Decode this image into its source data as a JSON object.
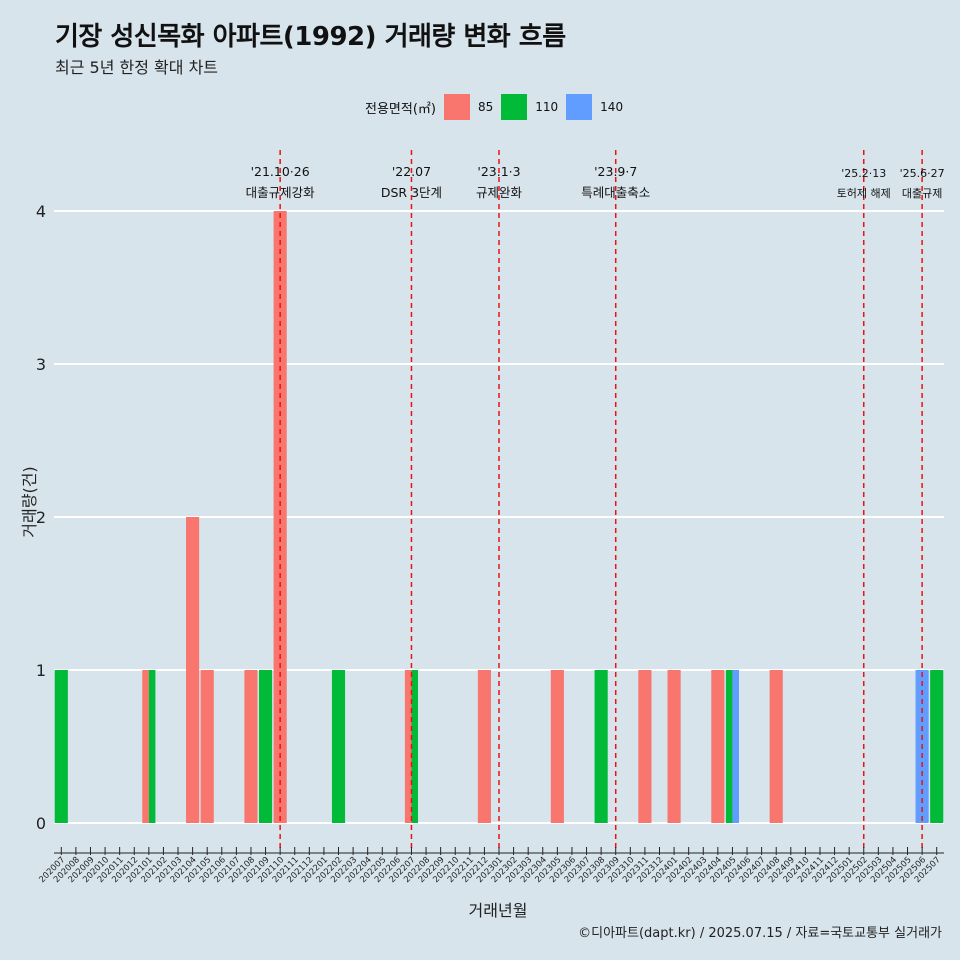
{
  "header": {
    "title": "기장 성신목화 아파트(1992) 거래량 변화 흐름",
    "subtitle": "최근 5년 한정 확대 차트"
  },
  "legend": {
    "title": "전용면적(㎡)",
    "items": [
      {
        "label": "85",
        "color": "#f8766d"
      },
      {
        "label": "110",
        "color": "#00ba38"
      },
      {
        "label": "140",
        "color": "#619cff"
      }
    ]
  },
  "caption": "©디아파트(dapt.kr) / 2025.07.15 / 자료=국토교통부 실거래가",
  "chart_data": {
    "type": "bar",
    "xlabel": "거래년월",
    "ylabel": "거래량(건)",
    "ylim": [
      0,
      4
    ],
    "yticks": [
      0,
      1,
      2,
      3,
      4
    ],
    "grid": "horizontal",
    "legend_position": "top",
    "categories": [
      "202007",
      "202008",
      "202009",
      "202010",
      "202011",
      "202012",
      "202101",
      "202102",
      "202103",
      "202104",
      "202105",
      "202106",
      "202107",
      "202108",
      "202109",
      "202110",
      "202111",
      "202112",
      "202201",
      "202202",
      "202203",
      "202204",
      "202205",
      "202206",
      "202207",
      "202208",
      "202209",
      "202210",
      "202211",
      "202212",
      "202301",
      "202302",
      "202303",
      "202304",
      "202305",
      "202306",
      "202307",
      "202308",
      "202309",
      "202310",
      "202311",
      "202312",
      "202401",
      "202402",
      "202403",
      "202404",
      "202405",
      "202406",
      "202407",
      "202408",
      "202409",
      "202410",
      "202411",
      "202412",
      "202501",
      "202502",
      "202503",
      "202504",
      "202505",
      "202506",
      "202507"
    ],
    "series": [
      {
        "name": "85",
        "color": "#f8766d",
        "values": [
          0,
          0,
          0,
          0,
          0,
          0,
          1,
          0,
          0,
          2,
          1,
          0,
          0,
          1,
          0,
          4,
          0,
          0,
          0,
          0,
          0,
          0,
          0,
          0,
          1,
          0,
          0,
          0,
          0,
          1,
          0,
          0,
          0,
          0,
          1,
          0,
          0,
          0,
          0,
          0,
          1,
          0,
          1,
          0,
          0,
          1,
          0,
          0,
          0,
          1,
          0,
          0,
          0,
          0,
          0,
          0,
          0,
          0,
          0,
          0,
          0
        ]
      },
      {
        "name": "110",
        "color": "#00ba38",
        "values": [
          1,
          0,
          0,
          0,
          0,
          0,
          1,
          0,
          0,
          0,
          0,
          0,
          0,
          0,
          1,
          0,
          0,
          0,
          0,
          1,
          0,
          0,
          0,
          0,
          1,
          0,
          0,
          0,
          0,
          0,
          0,
          0,
          0,
          0,
          0,
          0,
          0,
          1,
          0,
          0,
          0,
          0,
          0,
          0,
          0,
          0,
          1,
          0,
          0,
          0,
          0,
          0,
          0,
          0,
          0,
          0,
          0,
          0,
          0,
          0,
          1
        ]
      },
      {
        "name": "140",
        "color": "#619cff",
        "values": [
          0,
          0,
          0,
          0,
          0,
          0,
          0,
          0,
          0,
          0,
          0,
          0,
          0,
          0,
          0,
          0,
          0,
          0,
          0,
          0,
          0,
          0,
          0,
          0,
          0,
          0,
          0,
          0,
          0,
          0,
          0,
          0,
          0,
          0,
          0,
          0,
          0,
          0,
          0,
          0,
          0,
          0,
          0,
          0,
          0,
          0,
          1,
          0,
          0,
          0,
          0,
          0,
          0,
          0,
          0,
          0,
          0,
          0,
          0,
          1,
          0
        ]
      }
    ],
    "annotations": [
      {
        "category": "202110",
        "date": "'21.10·26",
        "label": "대출규제강화"
      },
      {
        "category": "202207",
        "date": "'22.07",
        "label": "DSR 3단계"
      },
      {
        "category": "202301",
        "date": "'23.1·3",
        "label": "규제완화"
      },
      {
        "category": "202309",
        "date": "'23.9·7",
        "label": "특례대출축소"
      },
      {
        "category": "202502",
        "date": "'25.2·13",
        "label": "토허제 해제"
      },
      {
        "category": "202506",
        "date": "'25.6·27",
        "label": "대출규제"
      }
    ]
  }
}
